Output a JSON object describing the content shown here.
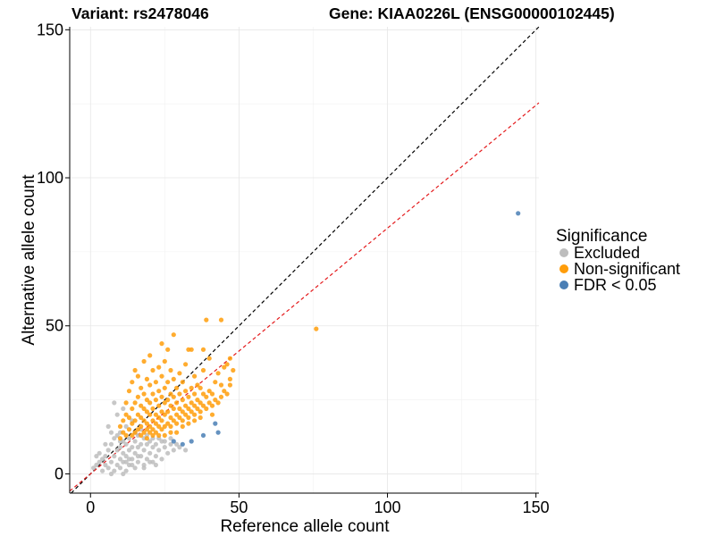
{
  "chart_data": {
    "type": "scatter",
    "title_variant": "Variant: rs2478046",
    "title_gene": "Gene: KIAA0226L (ENSG00000102445)",
    "xlabel": "Reference allele count",
    "ylabel": "Alternative allele count",
    "xlim": [
      -7,
      151
    ],
    "ylim": [
      -6.5,
      151
    ],
    "xticks": [
      0,
      50,
      100,
      150
    ],
    "yticks": [
      0,
      50,
      100,
      150
    ],
    "grid": true,
    "reference_lines": [
      {
        "name": "identity",
        "slope": 1.0,
        "intercept": 0,
        "color": "#000000",
        "style": "dashed"
      },
      {
        "name": "fit",
        "slope": 0.83,
        "intercept": 0,
        "color": "#e41a1c",
        "style": "dashed"
      }
    ],
    "legend": {
      "title": "Significance",
      "position": "right",
      "entries": [
        {
          "label": "Excluded",
          "color": "#bdbdbd"
        },
        {
          "label": "Non-significant",
          "color": "#ff9d0a"
        },
        {
          "label": "FDR < 0.05",
          "color": "#4a7fb5"
        }
      ]
    },
    "series": [
      {
        "name": "Excluded",
        "color": "#bdbdbd",
        "points": [
          [
            1,
            2
          ],
          [
            2,
            3
          ],
          [
            3,
            4
          ],
          [
            4,
            1
          ],
          [
            5,
            3
          ],
          [
            5,
            6
          ],
          [
            6,
            2
          ],
          [
            6,
            8
          ],
          [
            7,
            4
          ],
          [
            7,
            10
          ],
          [
            8,
            1
          ],
          [
            8,
            6
          ],
          [
            8,
            12
          ],
          [
            9,
            3
          ],
          [
            9,
            8
          ],
          [
            10,
            2
          ],
          [
            10,
            5
          ],
          [
            10,
            9
          ],
          [
            10,
            14
          ],
          [
            11,
            4
          ],
          [
            11,
            7
          ],
          [
            11,
            11
          ],
          [
            12,
            1
          ],
          [
            12,
            6
          ],
          [
            12,
            10
          ],
          [
            12,
            16
          ],
          [
            13,
            3
          ],
          [
            13,
            8
          ],
          [
            13,
            12
          ],
          [
            14,
            5
          ],
          [
            14,
            9
          ],
          [
            14,
            18
          ],
          [
            15,
            2
          ],
          [
            15,
            7
          ],
          [
            15,
            11
          ],
          [
            16,
            4
          ],
          [
            16,
            9
          ],
          [
            16,
            13
          ],
          [
            17,
            6
          ],
          [
            17,
            10
          ],
          [
            18,
            3
          ],
          [
            18,
            8
          ],
          [
            18,
            12
          ],
          [
            19,
            5
          ],
          [
            19,
            10
          ],
          [
            20,
            7
          ],
          [
            20,
            11
          ],
          [
            21,
            4
          ],
          [
            21,
            9
          ],
          [
            22,
            6
          ],
          [
            22,
            10
          ],
          [
            23,
            8
          ],
          [
            24,
            5
          ],
          [
            24,
            11
          ],
          [
            25,
            9
          ],
          [
            26,
            7
          ],
          [
            27,
            10
          ],
          [
            28,
            8
          ],
          [
            30,
            9
          ],
          [
            32,
            8
          ],
          [
            8,
            24
          ],
          [
            9,
            20
          ],
          [
            11,
            22
          ],
          [
            6,
            16
          ],
          [
            5,
            10
          ],
          [
            3,
            7
          ],
          [
            7,
            14
          ],
          [
            13,
            5
          ],
          [
            16,
            6
          ],
          [
            20,
            4
          ],
          [
            18,
            2
          ],
          [
            22,
            3
          ],
          [
            14,
            3
          ],
          [
            12,
            4
          ],
          [
            10,
            11
          ],
          [
            9,
            13
          ],
          [
            15,
            14
          ],
          [
            17,
            15
          ],
          [
            19,
            13
          ],
          [
            21,
            12
          ],
          [
            23,
            12
          ],
          [
            25,
            11
          ],
          [
            27,
            12
          ],
          [
            29,
            10
          ],
          [
            11,
            0
          ],
          [
            7,
            0
          ],
          [
            4,
            5
          ],
          [
            2,
            6
          ]
        ]
      },
      {
        "name": "Non-significant",
        "color": "#ff9d0a",
        "points": [
          [
            10,
            12
          ],
          [
            10,
            16
          ],
          [
            11,
            14
          ],
          [
            11,
            18
          ],
          [
            12,
            13
          ],
          [
            12,
            20
          ],
          [
            12,
            24
          ],
          [
            13,
            15
          ],
          [
            13,
            19
          ],
          [
            13,
            28
          ],
          [
            14,
            13
          ],
          [
            14,
            17
          ],
          [
            14,
            22
          ],
          [
            14,
            31
          ],
          [
            15,
            14
          ],
          [
            15,
            18
          ],
          [
            15,
            24
          ],
          [
            15,
            35
          ],
          [
            16,
            15
          ],
          [
            16,
            20
          ],
          [
            16,
            26
          ],
          [
            16,
            33
          ],
          [
            17,
            13
          ],
          [
            17,
            16
          ],
          [
            17,
            19
          ],
          [
            17,
            23
          ],
          [
            17,
            29
          ],
          [
            18,
            14
          ],
          [
            18,
            18
          ],
          [
            18,
            22
          ],
          [
            18,
            27
          ],
          [
            18,
            38
          ],
          [
            19,
            15
          ],
          [
            19,
            17
          ],
          [
            19,
            21
          ],
          [
            19,
            25
          ],
          [
            19,
            32
          ],
          [
            20,
            14
          ],
          [
            20,
            16
          ],
          [
            20,
            20
          ],
          [
            20,
            24
          ],
          [
            20,
            30
          ],
          [
            20,
            40
          ],
          [
            21,
            15
          ],
          [
            21,
            18
          ],
          [
            21,
            22
          ],
          [
            21,
            27
          ],
          [
            21,
            35
          ],
          [
            22,
            14
          ],
          [
            22,
            17
          ],
          [
            22,
            20
          ],
          [
            22,
            25
          ],
          [
            22,
            31
          ],
          [
            23,
            16
          ],
          [
            23,
            19
          ],
          [
            23,
            23
          ],
          [
            23,
            28
          ],
          [
            23,
            36
          ],
          [
            24,
            15
          ],
          [
            24,
            18
          ],
          [
            24,
            21
          ],
          [
            24,
            26
          ],
          [
            24,
            33
          ],
          [
            24,
            44
          ],
          [
            25,
            16
          ],
          [
            25,
            20
          ],
          [
            25,
            24
          ],
          [
            25,
            29
          ],
          [
            25,
            38
          ],
          [
            26,
            17
          ],
          [
            26,
            21
          ],
          [
            26,
            25
          ],
          [
            26,
            31
          ],
          [
            26,
            42
          ],
          [
            27,
            16
          ],
          [
            27,
            19
          ],
          [
            27,
            23
          ],
          [
            27,
            27
          ],
          [
            27,
            35
          ],
          [
            28,
            18
          ],
          [
            28,
            22
          ],
          [
            28,
            26
          ],
          [
            28,
            32
          ],
          [
            28,
            47
          ],
          [
            29,
            17
          ],
          [
            29,
            20
          ],
          [
            29,
            24
          ],
          [
            29,
            29
          ],
          [
            30,
            19
          ],
          [
            30,
            22
          ],
          [
            30,
            27
          ],
          [
            30,
            34
          ],
          [
            31,
            18
          ],
          [
            31,
            21
          ],
          [
            31,
            25
          ],
          [
            31,
            31
          ],
          [
            32,
            20
          ],
          [
            32,
            23
          ],
          [
            32,
            28
          ],
          [
            32,
            37
          ],
          [
            33,
            19
          ],
          [
            33,
            22
          ],
          [
            33,
            26
          ],
          [
            33,
            42
          ],
          [
            34,
            21
          ],
          [
            34,
            24
          ],
          [
            34,
            29
          ],
          [
            34,
            42
          ],
          [
            35,
            20
          ],
          [
            35,
            23
          ],
          [
            35,
            27
          ],
          [
            35,
            33
          ],
          [
            36,
            22
          ],
          [
            36,
            25
          ],
          [
            36,
            30
          ],
          [
            37,
            21
          ],
          [
            37,
            24
          ],
          [
            37,
            29
          ],
          [
            38,
            23
          ],
          [
            38,
            27
          ],
          [
            38,
            35
          ],
          [
            39,
            22
          ],
          [
            39,
            26
          ],
          [
            40,
            24
          ],
          [
            40,
            28
          ],
          [
            40,
            39
          ],
          [
            41,
            23
          ],
          [
            41,
            27
          ],
          [
            42,
            25
          ],
          [
            42,
            31
          ],
          [
            43,
            24
          ],
          [
            43,
            34
          ],
          [
            44,
            26
          ],
          [
            44,
            30
          ],
          [
            45,
            28
          ],
          [
            45,
            36
          ],
          [
            46,
            27
          ],
          [
            46,
            37
          ],
          [
            47,
            30
          ],
          [
            47,
            32
          ],
          [
            48,
            35
          ],
          [
            39,
            52
          ],
          [
            44,
            52
          ],
          [
            47,
            39
          ],
          [
            38,
            42
          ],
          [
            41,
            20
          ],
          [
            37,
            19
          ],
          [
            35,
            18
          ],
          [
            33,
            17
          ],
          [
            31,
            16
          ],
          [
            29,
            14
          ],
          [
            27,
            14
          ],
          [
            25,
            13
          ],
          [
            23,
            13
          ],
          [
            21,
            13
          ],
          [
            19,
            12
          ],
          [
            76,
            49
          ]
        ]
      },
      {
        "name": "FDR < 0.05",
        "color": "#4a7fb5",
        "points": [
          [
            28,
            11
          ],
          [
            31,
            10
          ],
          [
            34,
            11
          ],
          [
            38,
            13
          ],
          [
            42,
            17
          ],
          [
            43,
            14
          ],
          [
            144,
            88
          ]
        ]
      }
    ]
  }
}
